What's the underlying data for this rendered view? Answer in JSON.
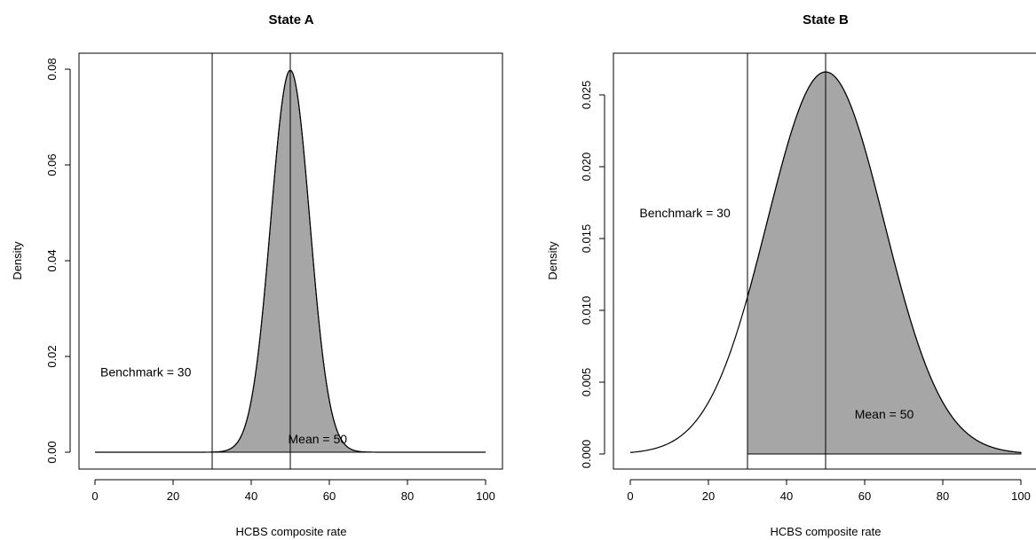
{
  "chart_data": [
    {
      "type": "area",
      "title": "State A",
      "xlabel": "HCBS composite rate",
      "ylabel": "Density",
      "distribution": "normal",
      "mean": 50,
      "sd": 5,
      "x_range": [
        0,
        100
      ],
      "shade_from": 30,
      "shade_to": 100,
      "xlim": [
        0,
        100
      ],
      "ylim": [
        0,
        0.08
      ],
      "x_ticks": [
        0,
        20,
        40,
        60,
        80,
        100
      ],
      "y_ticks": [
        0.0,
        0.02,
        0.04,
        0.06,
        0.08
      ],
      "y_tick_labels": [
        "0.00",
        "0.02",
        "0.04",
        "0.06",
        "0.08"
      ],
      "vertical_lines": [
        30,
        50
      ],
      "annotations": [
        {
          "text": "Benchmark = 30",
          "x": 13,
          "y": 0.0165
        },
        {
          "text": "Mean = 50",
          "x": 57,
          "y": 0.0025
        }
      ],
      "fill_color": "#a6a6a6",
      "grid": false
    },
    {
      "type": "area",
      "title": "State B",
      "xlabel": "HCBS composite rate",
      "ylabel": "Density",
      "distribution": "normal",
      "mean": 50,
      "sd": 15,
      "x_range": [
        0,
        100
      ],
      "shade_from": 30,
      "shade_to": 100,
      "xlim": [
        0,
        100
      ],
      "ylim": [
        0,
        0.0265
      ],
      "x_ticks": [
        0,
        20,
        40,
        60,
        80,
        100
      ],
      "y_ticks": [
        0.0,
        0.005,
        0.01,
        0.015,
        0.02,
        0.025
      ],
      "y_tick_labels": [
        "0.000",
        "0.005",
        "0.010",
        "0.015",
        "0.020",
        "0.025"
      ],
      "vertical_lines": [
        30,
        50
      ],
      "annotations": [
        {
          "text": "Benchmark = 30",
          "x": 14,
          "y": 0.0167
        },
        {
          "text": "Mean = 50",
          "x": 65,
          "y": 0.0027
        }
      ],
      "fill_color": "#a6a6a6",
      "grid": false
    }
  ]
}
